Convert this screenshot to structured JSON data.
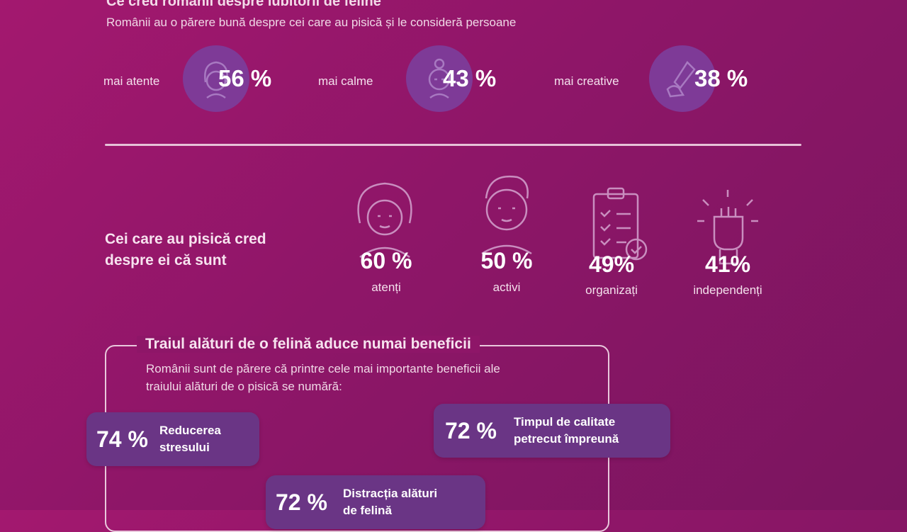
{
  "header": {
    "title": "Ce cred românii despre iubitorii de feline",
    "subtitle": "Românii au o părere bună despre cei care au pisică și le consideră persoane"
  },
  "traits_others": [
    {
      "label": "mai atente",
      "percent": "56 %",
      "icon": "woman-face-icon"
    },
    {
      "label": "mai calme",
      "percent": "43 %",
      "icon": "calm-face-icon"
    },
    {
      "label": "mai creative",
      "percent": "38 %",
      "icon": "pen-hand-icon"
    }
  ],
  "self_view": {
    "heading_line1": "Cei care au pisică cred",
    "heading_line2": "despre ei că sunt",
    "items": [
      {
        "percent": "60 %",
        "label": "atenți",
        "icon": "woman-face-icon"
      },
      {
        "percent": "50 %",
        "label": "activi",
        "icon": "man-face-icon"
      },
      {
        "percent": "49%",
        "label": "organizați",
        "icon": "clipboard-check-icon"
      },
      {
        "percent": "41%",
        "label": "independenți",
        "icon": "raised-fist-icon"
      }
    ]
  },
  "benefits": {
    "title": "Traiul alături de o felină aduce numai beneficii",
    "subtitle_line1": "Românii sunt de părere că printre cele mai importante beneficii ale",
    "subtitle_line2": "traiului alături de o pisică se numără:",
    "items": [
      {
        "percent": "74 %",
        "line1": "Reducerea",
        "line2": "stresului"
      },
      {
        "percent": "72 %",
        "line1": "Timpul de calitate",
        "line2": "petrecut împreună"
      },
      {
        "percent": "72 %",
        "line1": "Distracția alături",
        "line2": "de felină"
      }
    ]
  },
  "colors": {
    "background": "#8e1668",
    "circle": "#7e3a97",
    "pill": "#6a3585",
    "line": "#e6c2d8"
  }
}
